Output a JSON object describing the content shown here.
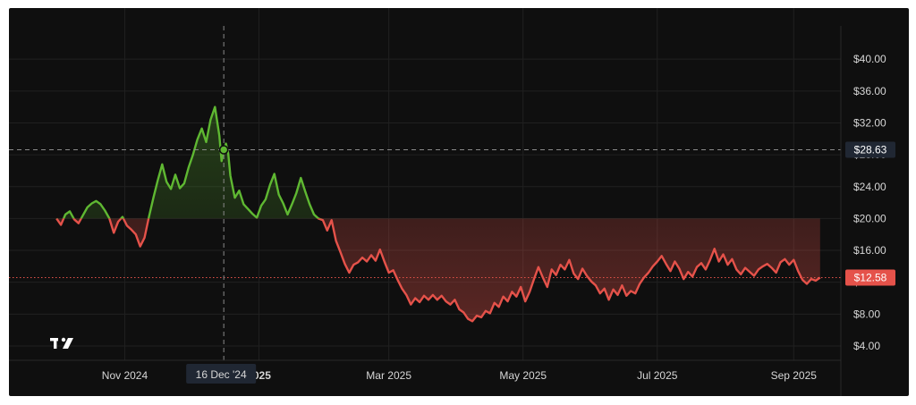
{
  "chart_data": {
    "type": "area",
    "baseline_value": 20.0,
    "last_price": 12.58,
    "last_price_label": "$12.58",
    "crosshair": {
      "date": "2024-12-16",
      "date_label": "16 Dec '24",
      "value": 28.63,
      "value_label": "$28.63"
    },
    "ylim": [
      2.2,
      43.5
    ],
    "y_ticks": [
      {
        "value": 40,
        "label": "$40.00"
      },
      {
        "value": 36,
        "label": "$36.00"
      },
      {
        "value": 32,
        "label": "$32.00"
      },
      {
        "value": 28,
        "label": "$28.00"
      },
      {
        "value": 24,
        "label": "$24.00"
      },
      {
        "value": 20,
        "label": "$20.00"
      },
      {
        "value": 16,
        "label": "$16.00"
      },
      {
        "value": 12,
        "label": "$12.00"
      },
      {
        "value": 8,
        "label": "$8.00"
      },
      {
        "value": 4,
        "label": "$4.00"
      }
    ],
    "x_ticks": [
      {
        "date": "2024-11-01",
        "label": "Nov 2024"
      },
      {
        "date": "2025-01-01",
        "label": "2025"
      },
      {
        "date": "2025-03-01",
        "label": "Mar 2025"
      },
      {
        "date": "2025-05-01",
        "label": "May 2025"
      },
      {
        "date": "2025-07-01",
        "label": "Jul 2025"
      },
      {
        "date": "2025-09-01",
        "label": "Sep 2025"
      }
    ],
    "grid": true,
    "colors": {
      "above": "#5fb832",
      "below": "#e5524a",
      "background": "#0f0f0f",
      "grid": "#202020",
      "tag_gray": "#202733"
    },
    "series": [
      {
        "points": [
          [
            "2024-10-01",
            20.0
          ],
          [
            "2024-10-03",
            19.2
          ],
          [
            "2024-10-05",
            20.5
          ],
          [
            "2024-10-07",
            20.9
          ],
          [
            "2024-10-09",
            19.9
          ],
          [
            "2024-10-11",
            19.4
          ],
          [
            "2024-10-13",
            20.4
          ],
          [
            "2024-10-15",
            21.4
          ],
          [
            "2024-10-17",
            21.9
          ],
          [
            "2024-10-19",
            22.2
          ],
          [
            "2024-10-21",
            21.8
          ],
          [
            "2024-10-23",
            21.0
          ],
          [
            "2024-10-25",
            20.0
          ],
          [
            "2024-10-27",
            18.2
          ],
          [
            "2024-10-29",
            19.6
          ],
          [
            "2024-10-31",
            20.2
          ],
          [
            "2024-11-02",
            19.1
          ],
          [
            "2024-11-04",
            18.6
          ],
          [
            "2024-11-06",
            18.0
          ],
          [
            "2024-11-08",
            16.5
          ],
          [
            "2024-11-10",
            17.6
          ],
          [
            "2024-11-12",
            20.2
          ],
          [
            "2024-11-14",
            22.6
          ],
          [
            "2024-11-16",
            24.8
          ],
          [
            "2024-11-18",
            26.8
          ],
          [
            "2024-11-20",
            24.6
          ],
          [
            "2024-11-22",
            23.7
          ],
          [
            "2024-11-24",
            25.5
          ],
          [
            "2024-11-26",
            23.8
          ],
          [
            "2024-11-28",
            24.4
          ],
          [
            "2024-11-30",
            26.4
          ],
          [
            "2024-12-02",
            28.0
          ],
          [
            "2024-12-04",
            29.9
          ],
          [
            "2024-12-06",
            31.3
          ],
          [
            "2024-12-08",
            29.6
          ],
          [
            "2024-12-10",
            32.4
          ],
          [
            "2024-12-12",
            34.0
          ],
          [
            "2024-12-14",
            30.4
          ],
          [
            "2024-12-15",
            27.2
          ],
          [
            "2024-12-16",
            28.63
          ],
          [
            "2024-12-17",
            29.4
          ],
          [
            "2024-12-18",
            28.2
          ],
          [
            "2024-12-19",
            25.4
          ],
          [
            "2024-12-21",
            22.6
          ],
          [
            "2024-12-23",
            23.5
          ],
          [
            "2024-12-25",
            21.8
          ],
          [
            "2024-12-27",
            21.2
          ],
          [
            "2024-12-29",
            20.6
          ],
          [
            "2024-12-31",
            20.1
          ],
          [
            "2025-01-02",
            21.6
          ],
          [
            "2025-01-04",
            22.4
          ],
          [
            "2025-01-06",
            24.2
          ],
          [
            "2025-01-08",
            25.6
          ],
          [
            "2025-01-10",
            23.0
          ],
          [
            "2025-01-12",
            21.9
          ],
          [
            "2025-01-14",
            20.5
          ],
          [
            "2025-01-16",
            21.8
          ],
          [
            "2025-01-18",
            23.2
          ],
          [
            "2025-01-20",
            25.1
          ],
          [
            "2025-01-22",
            23.4
          ],
          [
            "2025-01-24",
            21.8
          ],
          [
            "2025-01-26",
            20.5
          ],
          [
            "2025-01-28",
            20.0
          ],
          [
            "2025-01-30",
            19.8
          ],
          [
            "2025-02-01",
            18.5
          ],
          [
            "2025-02-03",
            19.8
          ],
          [
            "2025-02-05",
            17.2
          ],
          [
            "2025-02-07",
            15.8
          ],
          [
            "2025-02-09",
            14.3
          ],
          [
            "2025-02-11",
            13.2
          ],
          [
            "2025-02-13",
            14.2
          ],
          [
            "2025-02-15",
            14.5
          ],
          [
            "2025-02-17",
            15.1
          ],
          [
            "2025-02-19",
            14.6
          ],
          [
            "2025-02-21",
            15.4
          ],
          [
            "2025-02-23",
            14.7
          ],
          [
            "2025-02-25",
            16.1
          ],
          [
            "2025-02-27",
            14.6
          ],
          [
            "2025-03-01",
            13.2
          ],
          [
            "2025-03-03",
            13.5
          ],
          [
            "2025-03-05",
            12.3
          ],
          [
            "2025-03-07",
            11.2
          ],
          [
            "2025-03-09",
            10.4
          ],
          [
            "2025-03-11",
            9.2
          ],
          [
            "2025-03-13",
            10.0
          ],
          [
            "2025-03-15",
            9.5
          ],
          [
            "2025-03-17",
            10.3
          ],
          [
            "2025-03-19",
            9.8
          ],
          [
            "2025-03-21",
            10.4
          ],
          [
            "2025-03-23",
            9.8
          ],
          [
            "2025-03-25",
            10.3
          ],
          [
            "2025-03-27",
            9.6
          ],
          [
            "2025-03-29",
            9.2
          ],
          [
            "2025-03-31",
            9.8
          ],
          [
            "2025-04-02",
            8.6
          ],
          [
            "2025-04-04",
            8.2
          ],
          [
            "2025-04-06",
            7.4
          ],
          [
            "2025-04-08",
            7.1
          ],
          [
            "2025-04-10",
            7.8
          ],
          [
            "2025-04-12",
            7.6
          ],
          [
            "2025-04-14",
            8.4
          ],
          [
            "2025-04-16",
            8.1
          ],
          [
            "2025-04-18",
            9.4
          ],
          [
            "2025-04-20",
            8.9
          ],
          [
            "2025-04-22",
            10.2
          ],
          [
            "2025-04-24",
            9.6
          ],
          [
            "2025-04-26",
            10.8
          ],
          [
            "2025-04-28",
            10.2
          ],
          [
            "2025-04-30",
            11.4
          ],
          [
            "2025-05-02",
            9.6
          ],
          [
            "2025-05-04",
            10.8
          ],
          [
            "2025-05-06",
            12.4
          ],
          [
            "2025-05-08",
            13.9
          ],
          [
            "2025-05-10",
            12.6
          ],
          [
            "2025-05-12",
            11.4
          ],
          [
            "2025-05-14",
            13.6
          ],
          [
            "2025-05-16",
            12.9
          ],
          [
            "2025-05-18",
            14.2
          ],
          [
            "2025-05-20",
            13.6
          ],
          [
            "2025-05-22",
            14.8
          ],
          [
            "2025-05-24",
            13.1
          ],
          [
            "2025-05-26",
            12.4
          ],
          [
            "2025-05-28",
            13.7
          ],
          [
            "2025-05-30",
            12.8
          ],
          [
            "2025-06-01",
            12.1
          ],
          [
            "2025-06-03",
            11.6
          ],
          [
            "2025-06-05",
            10.6
          ],
          [
            "2025-06-07",
            11.2
          ],
          [
            "2025-06-09",
            9.8
          ],
          [
            "2025-06-11",
            11.1
          ],
          [
            "2025-06-13",
            10.4
          ],
          [
            "2025-06-15",
            11.6
          ],
          [
            "2025-06-17",
            10.3
          ],
          [
            "2025-06-19",
            10.9
          ],
          [
            "2025-06-21",
            10.6
          ],
          [
            "2025-06-23",
            11.8
          ],
          [
            "2025-06-25",
            12.6
          ],
          [
            "2025-06-27",
            13.2
          ],
          [
            "2025-06-29",
            14.0
          ],
          [
            "2025-07-01",
            14.6
          ],
          [
            "2025-07-03",
            15.3
          ],
          [
            "2025-07-05",
            14.3
          ],
          [
            "2025-07-07",
            13.4
          ],
          [
            "2025-07-09",
            14.6
          ],
          [
            "2025-07-11",
            13.7
          ],
          [
            "2025-07-13",
            12.4
          ],
          [
            "2025-07-15",
            13.3
          ],
          [
            "2025-07-17",
            12.7
          ],
          [
            "2025-07-19",
            13.9
          ],
          [
            "2025-07-21",
            14.4
          ],
          [
            "2025-07-23",
            13.6
          ],
          [
            "2025-07-25",
            14.8
          ],
          [
            "2025-07-27",
            16.2
          ],
          [
            "2025-07-29",
            14.6
          ],
          [
            "2025-07-31",
            15.5
          ],
          [
            "2025-08-02",
            14.2
          ],
          [
            "2025-08-04",
            14.9
          ],
          [
            "2025-08-06",
            13.6
          ],
          [
            "2025-08-08",
            13.0
          ],
          [
            "2025-08-10",
            13.8
          ],
          [
            "2025-08-12",
            13.3
          ],
          [
            "2025-08-14",
            12.8
          ],
          [
            "2025-08-16",
            13.6
          ],
          [
            "2025-08-18",
            14.0
          ],
          [
            "2025-08-20",
            14.3
          ],
          [
            "2025-08-22",
            13.8
          ],
          [
            "2025-08-24",
            13.2
          ],
          [
            "2025-08-26",
            14.5
          ],
          [
            "2025-08-28",
            14.9
          ],
          [
            "2025-08-30",
            14.2
          ],
          [
            "2025-09-01",
            14.8
          ],
          [
            "2025-09-03",
            13.4
          ],
          [
            "2025-09-05",
            12.3
          ],
          [
            "2025-09-07",
            11.8
          ],
          [
            "2025-09-09",
            12.4
          ],
          [
            "2025-09-11",
            12.2
          ],
          [
            "2025-09-13",
            12.58
          ]
        ]
      }
    ]
  }
}
